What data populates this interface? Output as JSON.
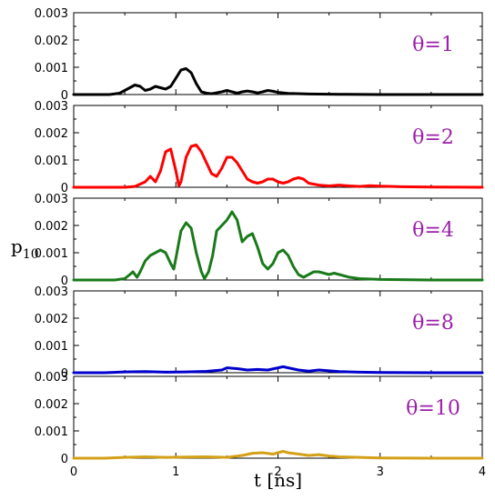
{
  "chart_data": {
    "type": "line",
    "xlabel": "t [ns]",
    "ylabel": "p",
    "ylabel_sub": "10",
    "xlim": [
      0,
      4
    ],
    "ylim": [
      0,
      0.003
    ],
    "xticks": [
      0,
      1,
      2,
      3,
      4
    ],
    "xtick_labels": [
      "0",
      "1",
      "2",
      "3",
      "4"
    ],
    "yticks": [
      0,
      0.001,
      0.002,
      0.003
    ],
    "ytick_labels": [
      "0",
      "0.001",
      "0.002",
      "0.003"
    ],
    "label_color": "#9b1fa8",
    "grid": false,
    "panels": [
      {
        "label": "θ=1",
        "color": "#000000",
        "points": [
          [
            0,
            0
          ],
          [
            0.35,
            0
          ],
          [
            0.45,
            5e-05
          ],
          [
            0.55,
            0.00025
          ],
          [
            0.6,
            0.00035
          ],
          [
            0.65,
            0.0003
          ],
          [
            0.7,
            0.00015
          ],
          [
            0.75,
            0.0002
          ],
          [
            0.8,
            0.0003
          ],
          [
            0.85,
            0.00025
          ],
          [
            0.9,
            0.0002
          ],
          [
            0.95,
            0.0003
          ],
          [
            1.0,
            0.0006
          ],
          [
            1.05,
            0.0009
          ],
          [
            1.1,
            0.00095
          ],
          [
            1.15,
            0.0008
          ],
          [
            1.2,
            0.0004
          ],
          [
            1.25,
            0.0001
          ],
          [
            1.3,
            5e-05
          ],
          [
            1.35,
            3e-05
          ],
          [
            1.45,
            0.0001
          ],
          [
            1.5,
            0.00015
          ],
          [
            1.55,
            0.0001
          ],
          [
            1.6,
            5e-05
          ],
          [
            1.65,
            0.0001
          ],
          [
            1.7,
            0.00013
          ],
          [
            1.75,
            0.0001
          ],
          [
            1.8,
            6e-05
          ],
          [
            1.85,
            0.0001
          ],
          [
            1.9,
            0.00015
          ],
          [
            1.95,
            0.00012
          ],
          [
            2.0,
            8e-05
          ],
          [
            2.1,
            4e-05
          ],
          [
            2.3,
            2e-05
          ],
          [
            2.6,
            1e-05
          ],
          [
            3.0,
            0
          ],
          [
            4.0,
            0
          ]
        ]
      },
      {
        "label": "θ=2",
        "color": "#ff0000",
        "points": [
          [
            0,
            0
          ],
          [
            0.5,
            0
          ],
          [
            0.6,
            3e-05
          ],
          [
            0.7,
            0.0002
          ],
          [
            0.75,
            0.0004
          ],
          [
            0.8,
            0.0002
          ],
          [
            0.85,
            0.0006
          ],
          [
            0.9,
            0.0013
          ],
          [
            0.95,
            0.0014
          ],
          [
            1.0,
            0.0006
          ],
          [
            1.03,
            5e-05
          ],
          [
            1.05,
            0.0002
          ],
          [
            1.1,
            0.0011
          ],
          [
            1.15,
            0.0015
          ],
          [
            1.2,
            0.00155
          ],
          [
            1.25,
            0.0013
          ],
          [
            1.3,
            0.0009
          ],
          [
            1.35,
            0.0005
          ],
          [
            1.4,
            0.0004
          ],
          [
            1.45,
            0.0007
          ],
          [
            1.5,
            0.0011
          ],
          [
            1.55,
            0.0011
          ],
          [
            1.6,
            0.0009
          ],
          [
            1.65,
            0.0006
          ],
          [
            1.7,
            0.0003
          ],
          [
            1.75,
            0.0002
          ],
          [
            1.8,
            0.00015
          ],
          [
            1.85,
            0.0002
          ],
          [
            1.9,
            0.0003
          ],
          [
            1.95,
            0.0003
          ],
          [
            2.0,
            0.0002
          ],
          [
            2.05,
            0.00015
          ],
          [
            2.1,
            0.0002
          ],
          [
            2.15,
            0.0003
          ],
          [
            2.2,
            0.00035
          ],
          [
            2.25,
            0.0003
          ],
          [
            2.3,
            0.00015
          ],
          [
            2.4,
            8e-05
          ],
          [
            2.5,
            5e-05
          ],
          [
            2.6,
            8e-05
          ],
          [
            2.7,
            5e-05
          ],
          [
            2.8,
            3e-05
          ],
          [
            2.9,
            6e-05
          ],
          [
            3.0,
            4e-05
          ],
          [
            3.2,
            2e-05
          ],
          [
            3.5,
            1e-05
          ],
          [
            4.0,
            0
          ]
        ]
      },
      {
        "label": "θ=4",
        "color": "#1a7a1a",
        "points": [
          [
            0,
            0
          ],
          [
            0.4,
            0
          ],
          [
            0.5,
            5e-05
          ],
          [
            0.55,
            0.0002
          ],
          [
            0.58,
            0.0003
          ],
          [
            0.62,
            0.0001
          ],
          [
            0.65,
            0.0003
          ],
          [
            0.7,
            0.0007
          ],
          [
            0.75,
            0.0009
          ],
          [
            0.8,
            0.001
          ],
          [
            0.85,
            0.0011
          ],
          [
            0.9,
            0.001
          ],
          [
            0.95,
            0.0006
          ],
          [
            0.98,
            0.0004
          ],
          [
            1.0,
            0.0008
          ],
          [
            1.05,
            0.0018
          ],
          [
            1.1,
            0.0021
          ],
          [
            1.15,
            0.0019
          ],
          [
            1.2,
            0.001
          ],
          [
            1.25,
            0.0003
          ],
          [
            1.28,
            5e-05
          ],
          [
            1.32,
            0.0003
          ],
          [
            1.36,
            0.0009
          ],
          [
            1.4,
            0.0018
          ],
          [
            1.45,
            0.002
          ],
          [
            1.5,
            0.0022
          ],
          [
            1.55,
            0.0025
          ],
          [
            1.6,
            0.0022
          ],
          [
            1.65,
            0.0014
          ],
          [
            1.7,
            0.0016
          ],
          [
            1.75,
            0.0017
          ],
          [
            1.8,
            0.0012
          ],
          [
            1.85,
            0.0006
          ],
          [
            1.9,
            0.0004
          ],
          [
            1.95,
            0.0006
          ],
          [
            2.0,
            0.001
          ],
          [
            2.05,
            0.0011
          ],
          [
            2.1,
            0.0009
          ],
          [
            2.15,
            0.0005
          ],
          [
            2.2,
            0.0002
          ],
          [
            2.25,
            0.0001
          ],
          [
            2.3,
            0.0002
          ],
          [
            2.35,
            0.0003
          ],
          [
            2.4,
            0.0003
          ],
          [
            2.45,
            0.00025
          ],
          [
            2.5,
            0.0002
          ],
          [
            2.55,
            0.00025
          ],
          [
            2.6,
            0.0002
          ],
          [
            2.7,
            0.0001
          ],
          [
            2.8,
            5e-05
          ],
          [
            3.0,
            2e-05
          ],
          [
            3.5,
            0
          ],
          [
            4.0,
            0
          ]
        ]
      },
      {
        "label": "θ=8",
        "color": "#0000cc",
        "points": [
          [
            0,
            0
          ],
          [
            0.3,
            0
          ],
          [
            0.5,
            3e-05
          ],
          [
            0.7,
            4e-05
          ],
          [
            0.9,
            2e-05
          ],
          [
            1.1,
            3e-05
          ],
          [
            1.3,
            5e-05
          ],
          [
            1.45,
            0.0001
          ],
          [
            1.5,
            0.00018
          ],
          [
            1.6,
            0.00015
          ],
          [
            1.7,
            0.0001
          ],
          [
            1.8,
            0.00012
          ],
          [
            1.9,
            0.0001
          ],
          [
            2.0,
            0.00018
          ],
          [
            2.05,
            0.00022
          ],
          [
            2.1,
            0.00018
          ],
          [
            2.2,
            0.0001
          ],
          [
            2.3,
            6e-05
          ],
          [
            2.4,
            0.0001
          ],
          [
            2.5,
            7e-05
          ],
          [
            2.6,
            4e-05
          ],
          [
            2.8,
            2e-05
          ],
          [
            3.0,
            1e-05
          ],
          [
            3.5,
            0
          ],
          [
            4.0,
            0
          ]
        ]
      },
      {
        "label": "θ=10",
        "color": "#d4a017",
        "points": [
          [
            0,
            0
          ],
          [
            0.3,
            0
          ],
          [
            0.5,
            3e-05
          ],
          [
            0.7,
            5e-05
          ],
          [
            0.9,
            3e-05
          ],
          [
            1.1,
            4e-05
          ],
          [
            1.3,
            5e-05
          ],
          [
            1.5,
            3e-05
          ],
          [
            1.65,
            0.0001
          ],
          [
            1.75,
            0.00018
          ],
          [
            1.85,
            0.0002
          ],
          [
            1.95,
            0.00015
          ],
          [
            2.0,
            0.0002
          ],
          [
            2.05,
            0.00025
          ],
          [
            2.1,
            0.0002
          ],
          [
            2.2,
            0.00015
          ],
          [
            2.3,
            0.0001
          ],
          [
            2.4,
            0.00013
          ],
          [
            2.5,
            8e-05
          ],
          [
            2.6,
            5e-05
          ],
          [
            2.8,
            3e-05
          ],
          [
            3.0,
            1e-05
          ],
          [
            3.5,
            0
          ],
          [
            4.0,
            0
          ]
        ]
      }
    ]
  }
}
